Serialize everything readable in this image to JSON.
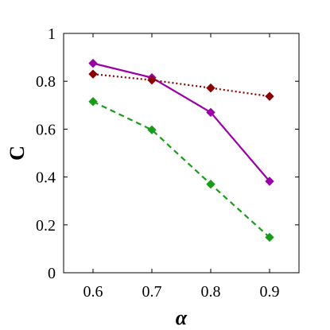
{
  "chart_data": {
    "type": "line",
    "title": "",
    "xlabel": "α",
    "ylabel": "C",
    "x": [
      0.6,
      0.7,
      0.8,
      0.9
    ],
    "xlim": [
      0.55,
      0.95
    ],
    "ylim": [
      0,
      1
    ],
    "x_ticks": [
      "0.6",
      "0.7",
      "0.8",
      "0.9"
    ],
    "y_ticks": [
      "0",
      "0.2",
      "0.4",
      "0.6",
      "0.8",
      "1"
    ],
    "grid": false,
    "series": [
      {
        "values": [
          0.875,
          0.815,
          0.67,
          0.382
        ],
        "color": "#9b00a8",
        "style": "solid",
        "marker": "diamond"
      },
      {
        "values": [
          0.83,
          0.805,
          0.772,
          0.737
        ],
        "color": "#8b0000",
        "style": "dotted",
        "marker": "diamond"
      },
      {
        "values": [
          0.715,
          0.597,
          0.37,
          0.148
        ],
        "color": "#1a9c1a",
        "style": "dashed",
        "marker": "diamond"
      }
    ]
  }
}
